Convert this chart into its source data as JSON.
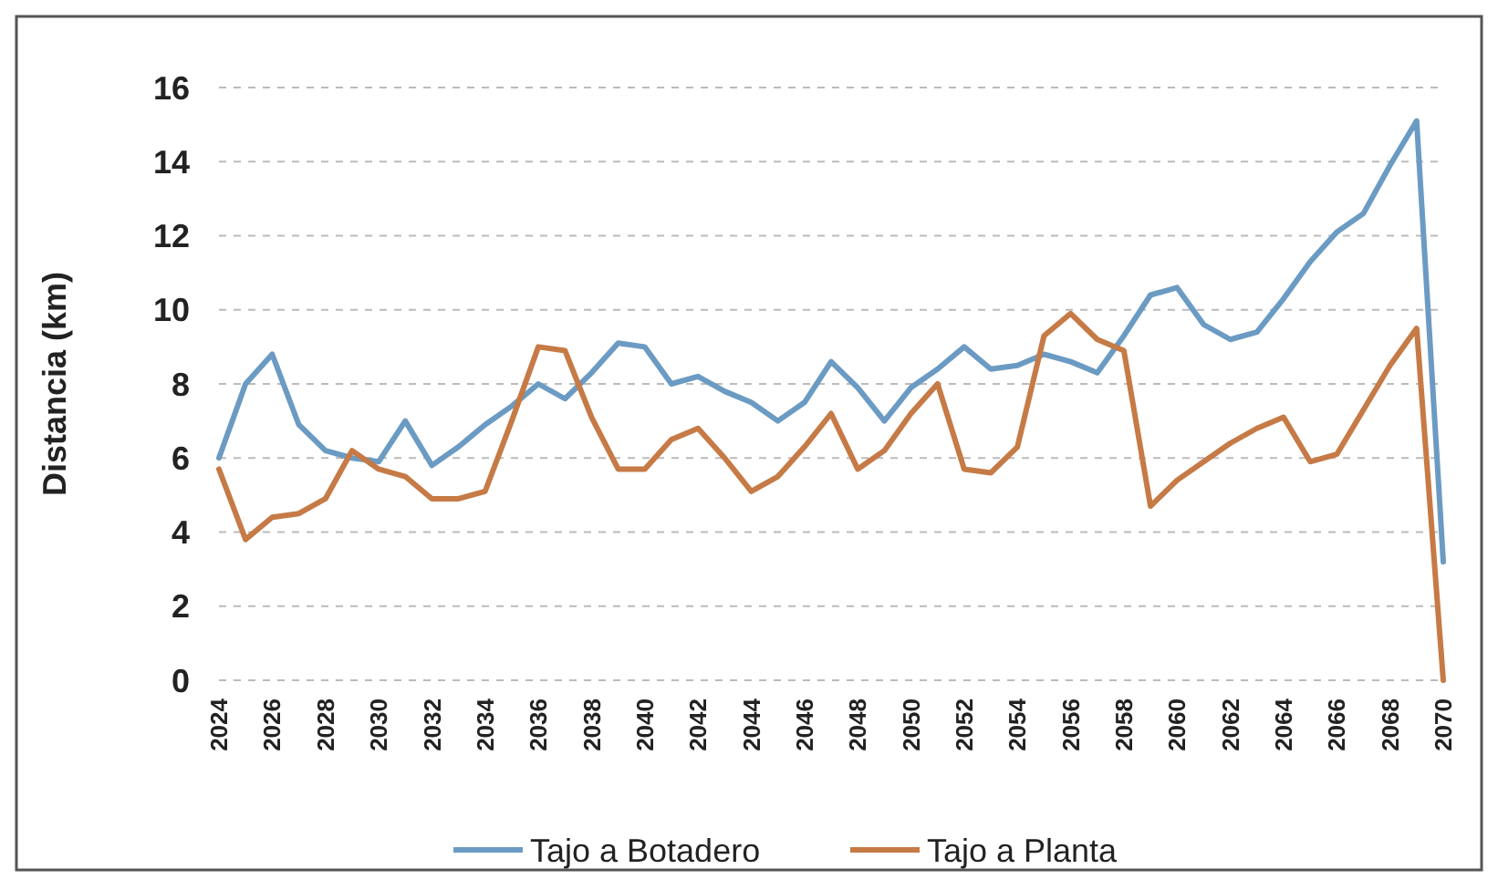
{
  "chart_data": {
    "type": "line",
    "ylabel": "Distancia (km)",
    "x": [
      2024,
      2025,
      2026,
      2027,
      2028,
      2029,
      2030,
      2031,
      2032,
      2033,
      2034,
      2035,
      2036,
      2037,
      2038,
      2039,
      2040,
      2041,
      2042,
      2043,
      2044,
      2045,
      2046,
      2047,
      2048,
      2049,
      2050,
      2051,
      2052,
      2053,
      2054,
      2055,
      2056,
      2057,
      2058,
      2059,
      2060,
      2061,
      2062,
      2063,
      2064,
      2065,
      2066,
      2067,
      2068,
      2069,
      2070
    ],
    "series": [
      {
        "name": "Tajo a Botadero",
        "color": "#6b9bc3",
        "values": [
          6.0,
          8.0,
          8.8,
          6.9,
          6.2,
          6.0,
          5.9,
          7.0,
          5.8,
          6.3,
          6.9,
          7.4,
          8.0,
          7.6,
          8.3,
          9.1,
          9.0,
          8.0,
          8.2,
          7.8,
          7.5,
          7.0,
          7.5,
          8.6,
          7.9,
          7.0,
          7.9,
          8.4,
          9.0,
          8.4,
          8.5,
          8.8,
          8.6,
          8.3,
          9.3,
          10.4,
          10.6,
          9.6,
          9.2,
          9.4,
          10.3,
          11.3,
          12.1,
          12.6,
          13.9,
          15.1,
          3.2
        ]
      },
      {
        "name": "Tajo a Planta",
        "color": "#c67a46",
        "values": [
          5.7,
          3.8,
          4.4,
          4.5,
          4.9,
          6.2,
          5.7,
          5.5,
          4.9,
          4.9,
          5.1,
          7.0,
          9.0,
          8.9,
          7.1,
          5.7,
          5.7,
          6.5,
          6.8,
          6.0,
          5.1,
          5.5,
          6.3,
          7.2,
          5.7,
          6.2,
          7.2,
          8.0,
          5.7,
          5.6,
          6.3,
          9.3,
          9.9,
          9.2,
          8.9,
          4.7,
          5.4,
          5.9,
          6.4,
          6.8,
          7.1,
          5.9,
          6.1,
          7.3,
          8.5,
          9.5,
          0
        ]
      }
    ],
    "xlim": [
      2024,
      2070
    ],
    "xticks": [
      2024,
      2026,
      2028,
      2030,
      2032,
      2034,
      2036,
      2038,
      2040,
      2042,
      2044,
      2046,
      2048,
      2050,
      2052,
      2054,
      2056,
      2058,
      2060,
      2062,
      2064,
      2066,
      2068,
      2070
    ],
    "ylim": [
      0,
      16
    ],
    "yticks": [
      0,
      2,
      4,
      6,
      8,
      10,
      12,
      14,
      16
    ],
    "grid": "y",
    "legend": "bottom",
    "marker": "none",
    "line_style": "solid"
  }
}
